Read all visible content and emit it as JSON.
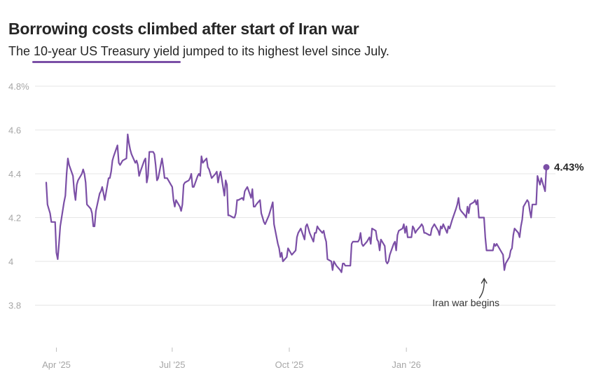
{
  "chart_data": {
    "type": "line",
    "title": "Borrowing costs climbed after start of Iran war",
    "subtitle": {
      "before": "The ",
      "highlight": "10-year US Treasury yield",
      "after": " jumped to its highest level since July."
    },
    "color": "#7b4fa6",
    "ylim": [
      3.6,
      4.8
    ],
    "y_ticks": [
      {
        "value": 4.8,
        "label": "4.8%"
      },
      {
        "value": 4.6,
        "label": "4.6"
      },
      {
        "value": 4.4,
        "label": "4.4"
      },
      {
        "value": 4.2,
        "label": "4.2"
      },
      {
        "value": 4.0,
        "label": "4"
      },
      {
        "value": 3.8,
        "label": "3.8"
      }
    ],
    "x_ticks": [
      {
        "date": "2025-04-01",
        "label": "Apr '25"
      },
      {
        "date": "2025-07-01",
        "label": "Jul '25"
      },
      {
        "date": "2025-10-01",
        "label": "Oct '25"
      },
      {
        "date": "2026-01-01",
        "label": "Jan '26"
      }
    ],
    "start_date": "2025-03-24",
    "end_label": "4.43%",
    "annotation": {
      "label": "Iran war begins",
      "date": "2026-03-02",
      "value": 3.96
    },
    "values": [
      4.36,
      4.26,
      4.24,
      4.22,
      4.18,
      4.18,
      4.04,
      4.01,
      4.08,
      4.16,
      4.27,
      4.3,
      4.4,
      4.47,
      4.44,
      4.39,
      4.32,
      4.28,
      4.35,
      4.37,
      4.4,
      4.42,
      4.4,
      4.36,
      4.26,
      4.24,
      4.22,
      4.16,
      4.16,
      4.23,
      4.31,
      4.32,
      4.34,
      4.31,
      4.28,
      4.38,
      4.38,
      4.41,
      4.46,
      4.48,
      4.53,
      4.45,
      4.44,
      4.45,
      4.46,
      4.47,
      4.58,
      4.54,
      4.51,
      4.49,
      4.45,
      4.46,
      4.44,
      4.39,
      4.41,
      4.46,
      4.47,
      4.36,
      4.39,
      4.5,
      4.5,
      4.49,
      4.44,
      4.37,
      4.38,
      4.47,
      4.43,
      4.38,
      4.38,
      4.38,
      4.35,
      4.34,
      4.28,
      4.25,
      4.28,
      4.25,
      4.23,
      4.26,
      4.35,
      4.36,
      4.37,
      4.38,
      4.4,
      4.34,
      4.34,
      4.39,
      4.4,
      4.39,
      4.48,
      4.45,
      4.47,
      4.43,
      4.42,
      4.4,
      4.38,
      4.4,
      4.41,
      4.36,
      4.39,
      4.41,
      4.3,
      4.37,
      4.35,
      4.21,
      4.21,
      4.2,
      4.2,
      4.22,
      4.28,
      4.28,
      4.29,
      4.28,
      4.32,
      4.33,
      4.34,
      4.29,
      4.33,
      4.25,
      4.25,
      4.26,
      4.28,
      4.22,
      4.2,
      4.18,
      4.17,
      4.21,
      4.23,
      4.25,
      4.27,
      4.17,
      4.08,
      4.06,
      4.02,
      4.04,
      4.0,
      4.02,
      4.06,
      4.05,
      4.04,
      4.03,
      4.05,
      4.11,
      4.13,
      4.14,
      4.15,
      4.1,
      4.16,
      4.17,
      4.15,
      4.13,
      4.09,
      4.13,
      4.13,
      4.16,
      4.15,
      4.13,
      4.14,
      4.11,
      4.09,
      4.01,
      4.0,
      3.96,
      4.0,
      3.99,
      3.98,
      3.96,
      3.95,
      3.99,
      3.99,
      3.98,
      3.98,
      3.98,
      4.08,
      4.09,
      4.09,
      4.09,
      4.1,
      4.13,
      4.08,
      4.07,
      4.09,
      4.1,
      4.11,
      4.08,
      4.15,
      4.14,
      4.1,
      4.09,
      4.05,
      4.1,
      4.07,
      4.0,
      3.99,
      4.0,
      4.03,
      4.08,
      4.09,
      4.05,
      4.12,
      4.14,
      4.15,
      4.17,
      4.13,
      4.16,
      4.11,
      4.11,
      4.16,
      4.15,
      4.13,
      4.14,
      4.16,
      4.17,
      4.16,
      4.13,
      4.13,
      4.12,
      4.12,
      4.15,
      4.16,
      4.17,
      4.14,
      4.12,
      4.16,
      4.15,
      4.17,
      4.13,
      4.16,
      4.15,
      4.17,
      4.19,
      4.24,
      4.26,
      4.29,
      4.24,
      4.23,
      4.21,
      4.2,
      4.25,
      4.22,
      4.26,
      4.27,
      4.28,
      4.26,
      4.28,
      4.2,
      4.2,
      4.2,
      4.11,
      4.05,
      4.05,
      4.05,
      4.05,
      4.08,
      4.07,
      4.08,
      4.05,
      4.04,
      4.03,
      3.96,
      3.99,
      4.02,
      4.05,
      4.06,
      4.12,
      4.15,
      4.13,
      4.11,
      4.16,
      4.19,
      4.25,
      4.28,
      4.27,
      4.23,
      4.2,
      4.26,
      4.26,
      4.39,
      4.37,
      4.35,
      4.38,
      4.32,
      4.43
    ]
  }
}
